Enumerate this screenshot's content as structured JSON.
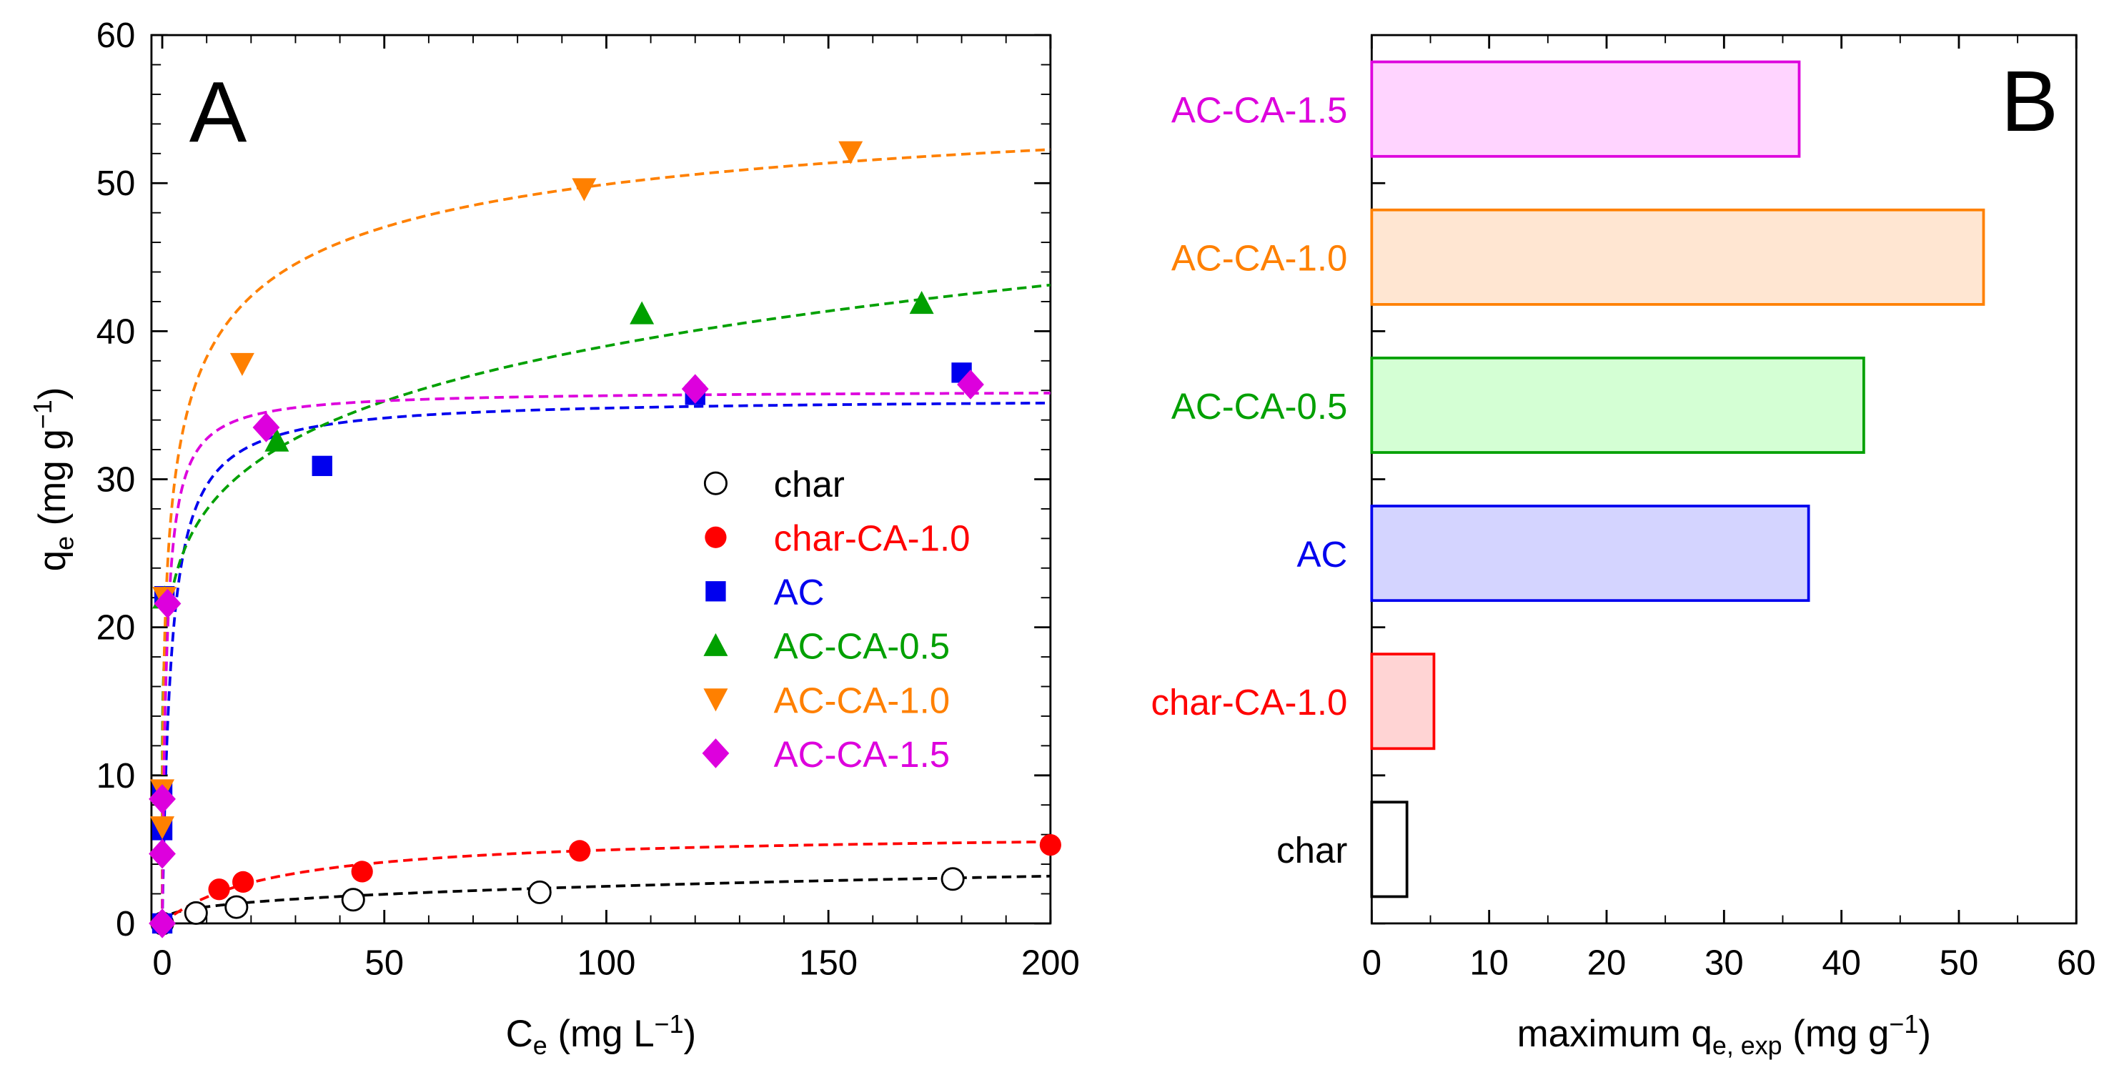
{
  "chart_data": [
    {
      "type": "scatter",
      "panel_label": "A",
      "xlabel": "C",
      "xlabel_sub": "e",
      "xlabel_unit": " (mg L",
      "xlabel_sup": "−1",
      "xlabel_end": ")",
      "ylabel": "q",
      "ylabel_sub": "e",
      "ylabel_unit": " (mg g",
      "ylabel_sup": "−1",
      "ylabel_end": ")",
      "xlim": [
        0,
        200
      ],
      "ylim": [
        0,
        60
      ],
      "xticks": [
        "0",
        "50",
        "100",
        "150",
        "200"
      ],
      "yticks": [
        "0",
        "10",
        "20",
        "30",
        "40",
        "50",
        "60"
      ],
      "grid": false,
      "legend_position": "center-right",
      "series": [
        {
          "name": "char",
          "color": "#000000",
          "marker": "open-circle",
          "x": [
            0,
            7.6,
            16.7,
            43,
            85,
            178
          ],
          "y": [
            0,
            0.7,
            1.1,
            1.6,
            2.1,
            3.0
          ],
          "fit": {
            "model": "freundlich",
            "a": 0.5,
            "n": 0.35
          }
        },
        {
          "name": "char-CA-1.0",
          "color": "#ff0000",
          "marker": "circle",
          "x": [
            0,
            12.8,
            18.2,
            45,
            94,
            200
          ],
          "y": [
            0,
            2.3,
            2.8,
            3.5,
            4.9,
            5.3
          ],
          "fit": {
            "model": "langmuir",
            "qm": 6.2,
            "K": 0.04
          }
        },
        {
          "name": "AC",
          "color": "#0000ee",
          "marker": "square",
          "x": [
            0,
            0,
            0,
            0.5,
            36,
            120,
            180
          ],
          "y": [
            0,
            6.3,
            9.0,
            22.1,
            30.9,
            35.7,
            37.2
          ],
          "fit": {
            "model": "langmuir",
            "qm": 35.5,
            "K": 0.5
          }
        },
        {
          "name": "AC-CA-0.5",
          "color": "#00a000",
          "marker": "triangle-up",
          "x": [
            0.5,
            25.8,
            108,
            171
          ],
          "y": [
            22.0,
            32.6,
            41.2,
            41.9
          ],
          "fit": {
            "model": "freundlich",
            "a": 20,
            "n": 0.145
          }
        },
        {
          "name": "AC-CA-1.0",
          "color": "#ff8000",
          "marker": "triangle-down",
          "x": [
            0,
            0,
            0.5,
            18,
            95,
            155
          ],
          "y": [
            6.5,
            9.0,
            22.0,
            37.8,
            49.6,
            52.1
          ],
          "fit": {
            "model": "sips",
            "qm": 60,
            "K": 0.35,
            "n": 0.45
          }
        },
        {
          "name": "AC-CA-1.5",
          "color": "#dd00dd",
          "marker": "diamond",
          "x": [
            0,
            0,
            0,
            1.2,
            23.4,
            120,
            182
          ],
          "y": [
            0,
            4.7,
            8.4,
            21.6,
            33.5,
            36.1,
            36.4
          ],
          "fit": {
            "model": "langmuir",
            "qm": 36,
            "K": 1.0
          }
        }
      ]
    },
    {
      "type": "bar",
      "orientation": "horizontal",
      "panel_label": "B",
      "xlabel": "maximum q",
      "xlabel_sub": "e, exp",
      "xlabel_unit": " (mg g",
      "xlabel_sup": "−1",
      "xlabel_end": ")",
      "xlim": [
        0,
        60
      ],
      "xticks": [
        "0",
        "10",
        "20",
        "30",
        "40",
        "50",
        "60"
      ],
      "grid": false,
      "categories": [
        "AC-CA-1.5",
        "AC-CA-1.0",
        "AC-CA-0.5",
        "AC",
        "char-CA-1.0",
        "char"
      ],
      "values": [
        36.4,
        52.1,
        41.9,
        37.2,
        5.3,
        3.0
      ],
      "colors": [
        "#dd00dd",
        "#ff8000",
        "#00a000",
        "#0000ee",
        "#ff0000",
        "#000000"
      ],
      "fills": [
        "#ffd4ff",
        "#ffe6d2",
        "#d4ffd4",
        "#d4d4ff",
        "#ffd4d4",
        "#ffffff"
      ]
    }
  ]
}
